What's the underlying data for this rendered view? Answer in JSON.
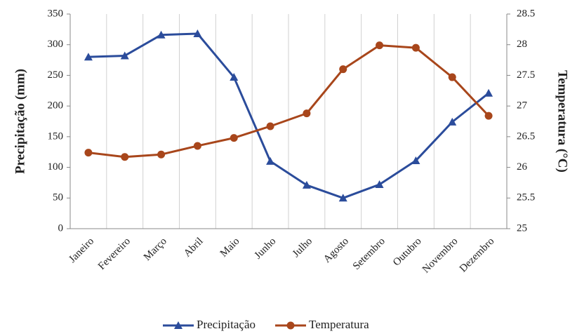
{
  "chart_data": {
    "type": "line",
    "categories": [
      "Janeiro",
      "Fevereiro",
      "Março",
      "Abril",
      "Maio",
      "Junho",
      "Julho",
      "Agosto",
      "Setembro",
      "Outubro",
      "Novembro",
      "Dezembro"
    ],
    "series": [
      {
        "name": "Precipitação",
        "color": "#2b4c9b",
        "marker": "triangle",
        "values": [
          280,
          282,
          316,
          318,
          247,
          110,
          71,
          50,
          72,
          111,
          174,
          221
        ]
      },
      {
        "name": "Temperatura",
        "color": "#a8461b",
        "marker": "circle",
        "axis": "y2",
        "values": [
          26.24,
          26.17,
          26.21,
          26.35,
          26.48,
          26.67,
          26.88,
          27.6,
          27.99,
          27.95,
          27.47,
          26.84
        ]
      }
    ],
    "ylabel": "Precipitação (mm)",
    "y2label": "Temperatura (°C)",
    "ylim": [
      0,
      350
    ],
    "yticks": [
      0,
      50,
      100,
      150,
      200,
      250,
      300,
      350
    ],
    "y2lim": [
      25,
      28.5
    ],
    "y2ticks": [
      25,
      25.5,
      26,
      26.5,
      27,
      27.5,
      28,
      28.5
    ],
    "grid": "x",
    "legend": "bottom"
  }
}
